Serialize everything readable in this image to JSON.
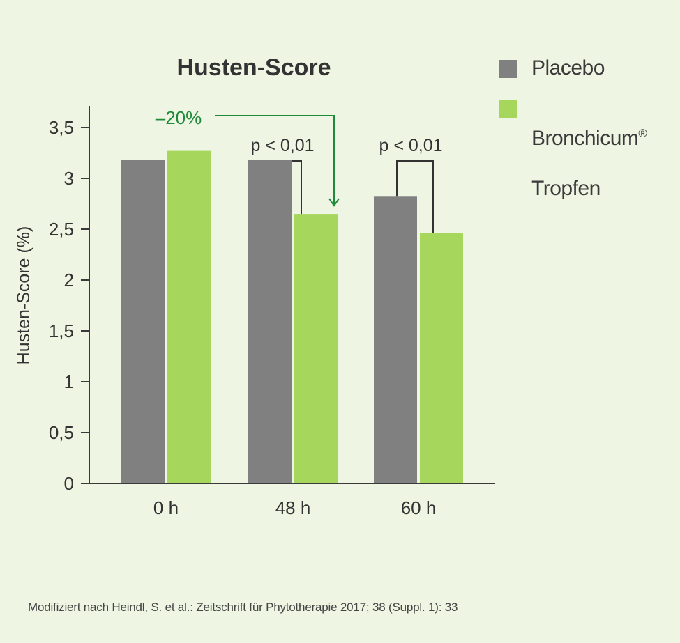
{
  "colors": {
    "background": "#eef6e3",
    "placebo": "#808080",
    "bronchicum": "#a6d65c",
    "annotation_green": "#1e8a3a",
    "axis": "#3a3a3a"
  },
  "legend": {
    "placebo_label": "Placebo",
    "bronchicum_label": "Bronchicum",
    "bronchicum_mark": "®",
    "bronchicum_label_2": "Tropfen"
  },
  "chart_data": {
    "type": "bar",
    "title": "Husten-Score",
    "ylabel": "Husten-Score (%)",
    "xlabel": "",
    "categories": [
      "0 h",
      "48 h",
      "60 h"
    ],
    "series": [
      {
        "name": "Placebo",
        "values": [
          3.18,
          3.18,
          2.82
        ]
      },
      {
        "name": "Bronchicum® Tropfen",
        "values": [
          3.27,
          2.65,
          2.46
        ]
      }
    ],
    "ylim": [
      0,
      3.65
    ],
    "yticks": [
      0,
      0.5,
      1,
      1.5,
      2,
      2.5,
      3,
      3.5
    ],
    "ytick_labels": [
      "0",
      "0,5",
      "1",
      "1,5",
      "2",
      "2,5",
      "3",
      "3,5"
    ],
    "grid": false,
    "legend_position": "top-right",
    "annotations": {
      "reduction_label": "–20%",
      "significance": [
        {
          "category": "48 h",
          "label": "p < 0,01"
        },
        {
          "category": "60 h",
          "label": "p < 0,01"
        }
      ]
    }
  },
  "source": "Modifiziert nach Heindl, S. et al.: Zeitschrift für Phytotherapie 2017; 38 (Suppl. 1): 33"
}
